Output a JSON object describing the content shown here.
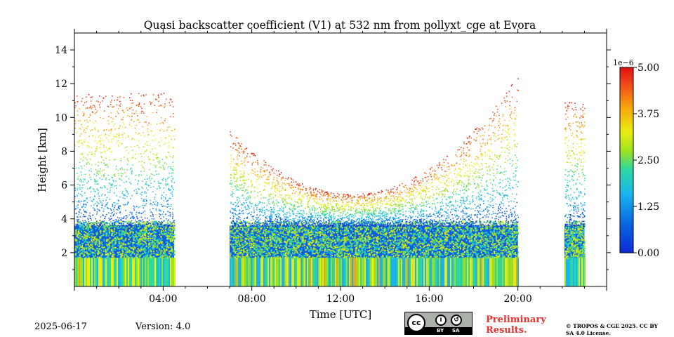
{
  "chart_data": {
    "type": "heatmap",
    "title": "Quasi backscatter coefficient (V1) at 532 nm from pollyxt_cge at Evora",
    "xlabel": "Time [UTC]",
    "ylabel": "Height [km]",
    "xlim": [
      0,
      24
    ],
    "ylim": [
      0,
      15
    ],
    "x_ticks": [
      "04:00",
      "08:00",
      "12:00",
      "16:00",
      "20:00"
    ],
    "x_tick_hours": [
      4,
      8,
      12,
      16,
      20
    ],
    "y_ticks": [
      "2",
      "4",
      "6",
      "8",
      "10",
      "12",
      "14"
    ],
    "y_tick_values": [
      2,
      4,
      6,
      8,
      10,
      12,
      14
    ],
    "data_segments_hours": [
      [
        0.0,
        4.5
      ],
      [
        7.0,
        20.0
      ],
      [
        22.1,
        23.0
      ]
    ],
    "colorbar": {
      "min": 0.0,
      "max": 5.0,
      "ticks": [
        "0.00",
        "1.25",
        "2.50",
        "3.75",
        "5.00"
      ],
      "exponent_label": "1e−6",
      "colormap": "jet"
    }
  },
  "footer": {
    "date": "2025-06-17",
    "version": "Version: 4.0",
    "preliminary": "Preliminary Results.",
    "copyright": "© TROPOS & CGE 2025. CC BY SA 4.0 License.",
    "license_badge": {
      "cc": "cc",
      "by": "BY",
      "sa": "SA"
    }
  }
}
